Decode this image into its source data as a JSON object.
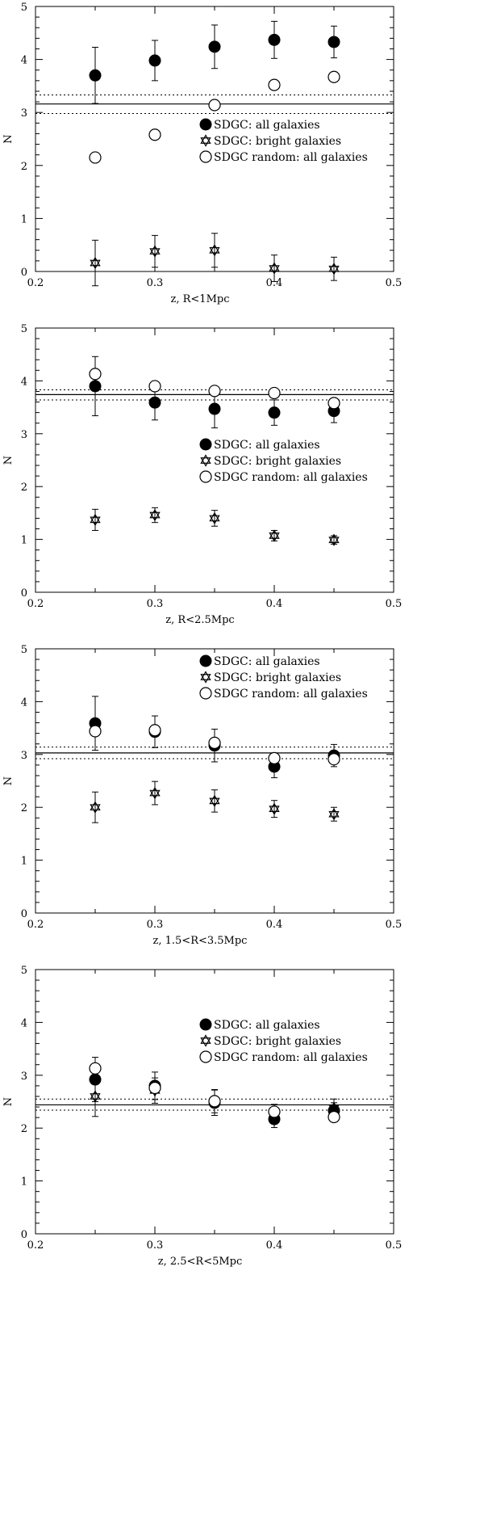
{
  "chart_data": [
    {
      "type": "scatter",
      "title": "",
      "xlabel": "z,  R<1Mpc",
      "ylabel": "N",
      "xlim": [
        0.2,
        0.5
      ],
      "ylim": [
        0,
        5
      ],
      "xticks": [
        "0.2",
        "0.3",
        "0.4",
        "0.5"
      ],
      "yticks": [
        "0",
        "1",
        "2",
        "3",
        "4",
        "5"
      ],
      "legend_position": "center-right",
      "hlines": [
        {
          "y": 3.16,
          "style": "solid"
        },
        {
          "y": 3.33,
          "style": "dotted"
        },
        {
          "y": 2.98,
          "style": "dotted"
        }
      ],
      "series": [
        {
          "name": "SDGC: all galaxies",
          "marker": "filled-circle",
          "x": [
            0.25,
            0.3,
            0.35,
            0.4,
            0.45
          ],
          "y": [
            3.7,
            3.98,
            4.24,
            4.37,
            4.33
          ],
          "err": [
            0.53,
            0.38,
            0.41,
            0.35,
            0.3
          ]
        },
        {
          "name": "SDGC: bright galaxies",
          "marker": "open-star",
          "x": [
            0.25,
            0.3,
            0.35,
            0.4,
            0.45
          ],
          "y": [
            0.16,
            0.38,
            0.4,
            0.06,
            0.05
          ],
          "err": [
            0.43,
            0.3,
            0.32,
            0.25,
            0.22
          ]
        },
        {
          "name": "SDGC random: all galaxies",
          "marker": "open-circle",
          "x": [
            0.25,
            0.3,
            0.35,
            0.4,
            0.45
          ],
          "y": [
            2.15,
            2.58,
            3.14,
            3.52,
            3.67
          ],
          "err": [
            0,
            0,
            0,
            0,
            0
          ]
        }
      ]
    },
    {
      "type": "scatter",
      "title": "",
      "xlabel": "z,  R<2.5Mpc",
      "ylabel": "N",
      "xlim": [
        0.2,
        0.5
      ],
      "ylim": [
        0,
        5
      ],
      "xticks": [
        "0.2",
        "0.3",
        "0.4",
        "0.5"
      ],
      "yticks": [
        "0",
        "1",
        "2",
        "3",
        "4",
        "5"
      ],
      "legend_position": "center-right",
      "hlines": [
        {
          "y": 3.74,
          "style": "solid"
        },
        {
          "y": 3.83,
          "style": "dotted"
        },
        {
          "y": 3.64,
          "style": "dotted"
        }
      ],
      "series": [
        {
          "name": "SDGC: all galaxies",
          "marker": "filled-circle",
          "x": [
            0.25,
            0.3,
            0.35,
            0.4,
            0.45
          ],
          "y": [
            3.9,
            3.59,
            3.47,
            3.4,
            3.43
          ],
          "err": [
            0.56,
            0.33,
            0.36,
            0.24,
            0.22
          ]
        },
        {
          "name": "SDGC: bright galaxies",
          "marker": "open-star",
          "x": [
            0.25,
            0.3,
            0.35,
            0.4,
            0.45
          ],
          "y": [
            1.37,
            1.46,
            1.4,
            1.07,
            0.99
          ],
          "err": [
            0.2,
            0.14,
            0.15,
            0.1,
            0.08
          ]
        },
        {
          "name": "SDGC random: all galaxies",
          "marker": "open-circle",
          "x": [
            0.25,
            0.3,
            0.35,
            0.4,
            0.45
          ],
          "y": [
            4.13,
            3.9,
            3.81,
            3.77,
            3.58
          ],
          "err": [
            0,
            0,
            0,
            0,
            0
          ]
        }
      ]
    },
    {
      "type": "scatter",
      "title": "",
      "xlabel": "z,  1.5<R<3.5Mpc",
      "ylabel": "N",
      "xlim": [
        0.2,
        0.5
      ],
      "ylim": [
        0,
        5
      ],
      "xticks": [
        "0.2",
        "0.3",
        "0.4",
        "0.5"
      ],
      "yticks": [
        "0",
        "1",
        "2",
        "3",
        "4",
        "5"
      ],
      "legend_position": "top-right",
      "hlines": [
        {
          "y": 3.03,
          "style": "solid"
        },
        {
          "y": 3.14,
          "style": "dotted"
        },
        {
          "y": 2.92,
          "style": "dotted"
        }
      ],
      "series": [
        {
          "name": "SDGC: all galaxies",
          "marker": "filled-circle",
          "x": [
            0.25,
            0.3,
            0.35,
            0.4,
            0.45
          ],
          "y": [
            3.59,
            3.43,
            3.17,
            2.77,
            2.98
          ],
          "err": [
            0.51,
            0.3,
            0.31,
            0.21,
            0.21
          ]
        },
        {
          "name": "SDGC: bright galaxies",
          "marker": "open-star",
          "x": [
            0.25,
            0.3,
            0.35,
            0.4,
            0.45
          ],
          "y": [
            2.0,
            2.27,
            2.12,
            1.97,
            1.87
          ],
          "err": [
            0.29,
            0.22,
            0.21,
            0.16,
            0.13
          ]
        },
        {
          "name": "SDGC random: all galaxies",
          "marker": "open-circle",
          "x": [
            0.25,
            0.3,
            0.35,
            0.4,
            0.45
          ],
          "y": [
            3.44,
            3.46,
            3.22,
            2.93,
            2.91
          ],
          "err": [
            0,
            0,
            0,
            0,
            0
          ]
        }
      ]
    },
    {
      "type": "scatter",
      "title": "",
      "xlabel": "z,  2.5<R<5Mpc",
      "ylabel": "N",
      "xlim": [
        0.2,
        0.5
      ],
      "ylim": [
        0,
        5
      ],
      "xticks": [
        "0.2",
        "0.3",
        "0.4",
        "0.5"
      ],
      "yticks": [
        "0",
        "1",
        "2",
        "3",
        "4",
        "5"
      ],
      "legend_position": "center-right",
      "hlines": [
        {
          "y": 2.44,
          "style": "solid"
        },
        {
          "y": 2.55,
          "style": "dotted"
        },
        {
          "y": 2.34,
          "style": "dotted"
        }
      ],
      "series": [
        {
          "name": "SDGC: all galaxies",
          "marker": "filled-circle",
          "x": [
            0.25,
            0.3,
            0.35,
            0.4,
            0.45
          ],
          "y": [
            2.92,
            2.8,
            2.48,
            2.17,
            2.33
          ],
          "err": [
            0.42,
            0.26,
            0.24,
            0.16,
            0.15
          ]
        },
        {
          "name": "SDGC: bright galaxies",
          "marker": "open-star",
          "x": [
            0.25,
            0.3,
            0.35,
            0.4,
            0.45
          ],
          "y": [
            2.6,
            2.71,
            2.51,
            2.28,
            2.38
          ],
          "err": [
            0.38,
            0.24,
            0.22,
            0.17,
            0.17
          ]
        },
        {
          "name": "SDGC random: all galaxies",
          "marker": "open-circle",
          "x": [
            0.25,
            0.3,
            0.35,
            0.4,
            0.45
          ],
          "y": [
            3.13,
            2.76,
            2.51,
            2.31,
            2.21
          ],
          "err": [
            0,
            0,
            0,
            0,
            0
          ]
        }
      ]
    }
  ]
}
